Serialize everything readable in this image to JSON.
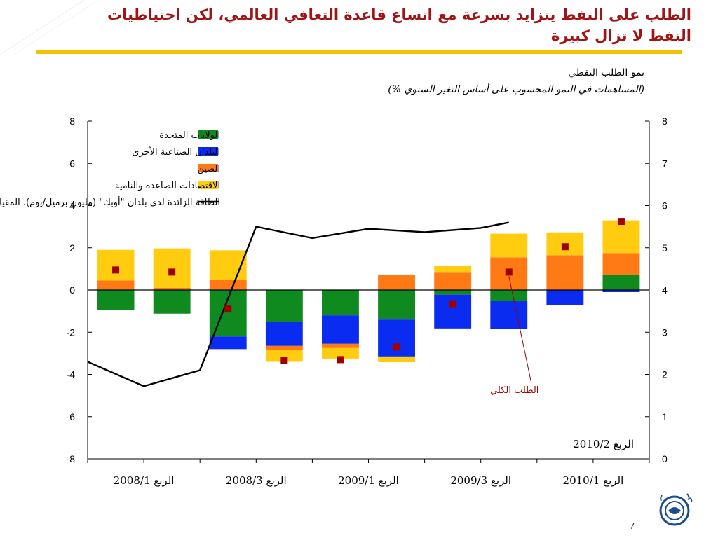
{
  "slide": {
    "title": "الطلب على النفط يتزايد بسرعة مع اتساع قاعدة التعافي العالمي، لكن احتياطيات النفط لا تزال كبيرة",
    "page_number": "7",
    "brand_color": "#f2c200",
    "title_color": "#a01414",
    "logo_icon": "imf-seal-icon"
  },
  "chart_data": {
    "type": "bar",
    "title": "نمو الطلب النفطي",
    "subtitle": "(المساهمات في النمو المحسوب على أساس التغير السنوي %)",
    "stacked": true,
    "categories": [
      "2008Q1",
      "2008Q2",
      "2008Q3",
      "2008Q4",
      "2009Q1",
      "2009Q2",
      "2009Q3",
      "2009Q4",
      "2010Q1",
      "2010Q2"
    ],
    "x_tick_labels": [
      "2008/الربع 1",
      "2008/الربع 3",
      "2009/الربع 1",
      "2009/الربع 3",
      "2010/الربع 1"
    ],
    "x_tick_positions": [
      0,
      2,
      4,
      6,
      8
    ],
    "last_label": "2010/الربع 2",
    "y_left": {
      "range": [
        -8,
        8
      ],
      "ticks": [
        "8",
        "6",
        "4",
        "2",
        "0",
        "-2",
        "-4",
        "-6",
        "-8"
      ]
    },
    "y_right": {
      "range": [
        0,
        8
      ],
      "ticks": [
        "8",
        "7",
        "6",
        "5",
        "4",
        "3",
        "2",
        "1",
        "0"
      ]
    },
    "series": [
      {
        "name": "الولايات المتحدة",
        "color": "#0f8a1e",
        "values": [
          -0.95,
          -1.12,
          -2.2,
          -1.5,
          -1.2,
          -1.4,
          -0.22,
          -0.5,
          0.0,
          0.7
        ]
      },
      {
        "name": "البلدان الصناعية الأخرى",
        "color": "#0a2cf0",
        "values": [
          0.0,
          0.0,
          -0.6,
          -1.15,
          -1.35,
          -1.75,
          -1.6,
          -1.35,
          -0.7,
          -0.1
        ]
      },
      {
        "name": "الصين",
        "color": "#ff7a15",
        "values": [
          0.45,
          0.1,
          0.5,
          -0.2,
          -0.2,
          0.7,
          0.85,
          1.55,
          1.65,
          1.05
        ]
      },
      {
        "name": "الاقتصادات الصاعدة والنامية",
        "color": "#ffcc10",
        "values": [
          1.45,
          1.87,
          1.38,
          -0.55,
          -0.5,
          -0.27,
          0.28,
          1.12,
          1.08,
          1.55
        ]
      }
    ],
    "total": {
      "name": "الطلب الكلي",
      "color": "#a00000",
      "values": [
        0.95,
        0.85,
        -0.9,
        -3.35,
        -3.3,
        -2.7,
        -0.65,
        0.85,
        2.05,
        3.25
      ]
    },
    "spare_capacity": {
      "name": "الطاقة الزائدة لدى بلدان \"أوبك\" (مليون برميل/يوم)، المقياس الأيمن",
      "axis": "right",
      "color": "#000000",
      "points": [
        [
          -0.5,
          2.3
        ],
        [
          1.5,
          1.72
        ],
        [
          3.5,
          2.1
        ],
        [
          5.5,
          5.5
        ],
        [
          7.5,
          5.23
        ],
        [
          9.5,
          5.45
        ],
        [
          11.5,
          5.37
        ],
        [
          13.5,
          5.47
        ],
        [
          14.5,
          5.6
        ]
      ]
    },
    "annotation": "الطلب الكلي",
    "legend_position": "top-left",
    "grid": false
  }
}
